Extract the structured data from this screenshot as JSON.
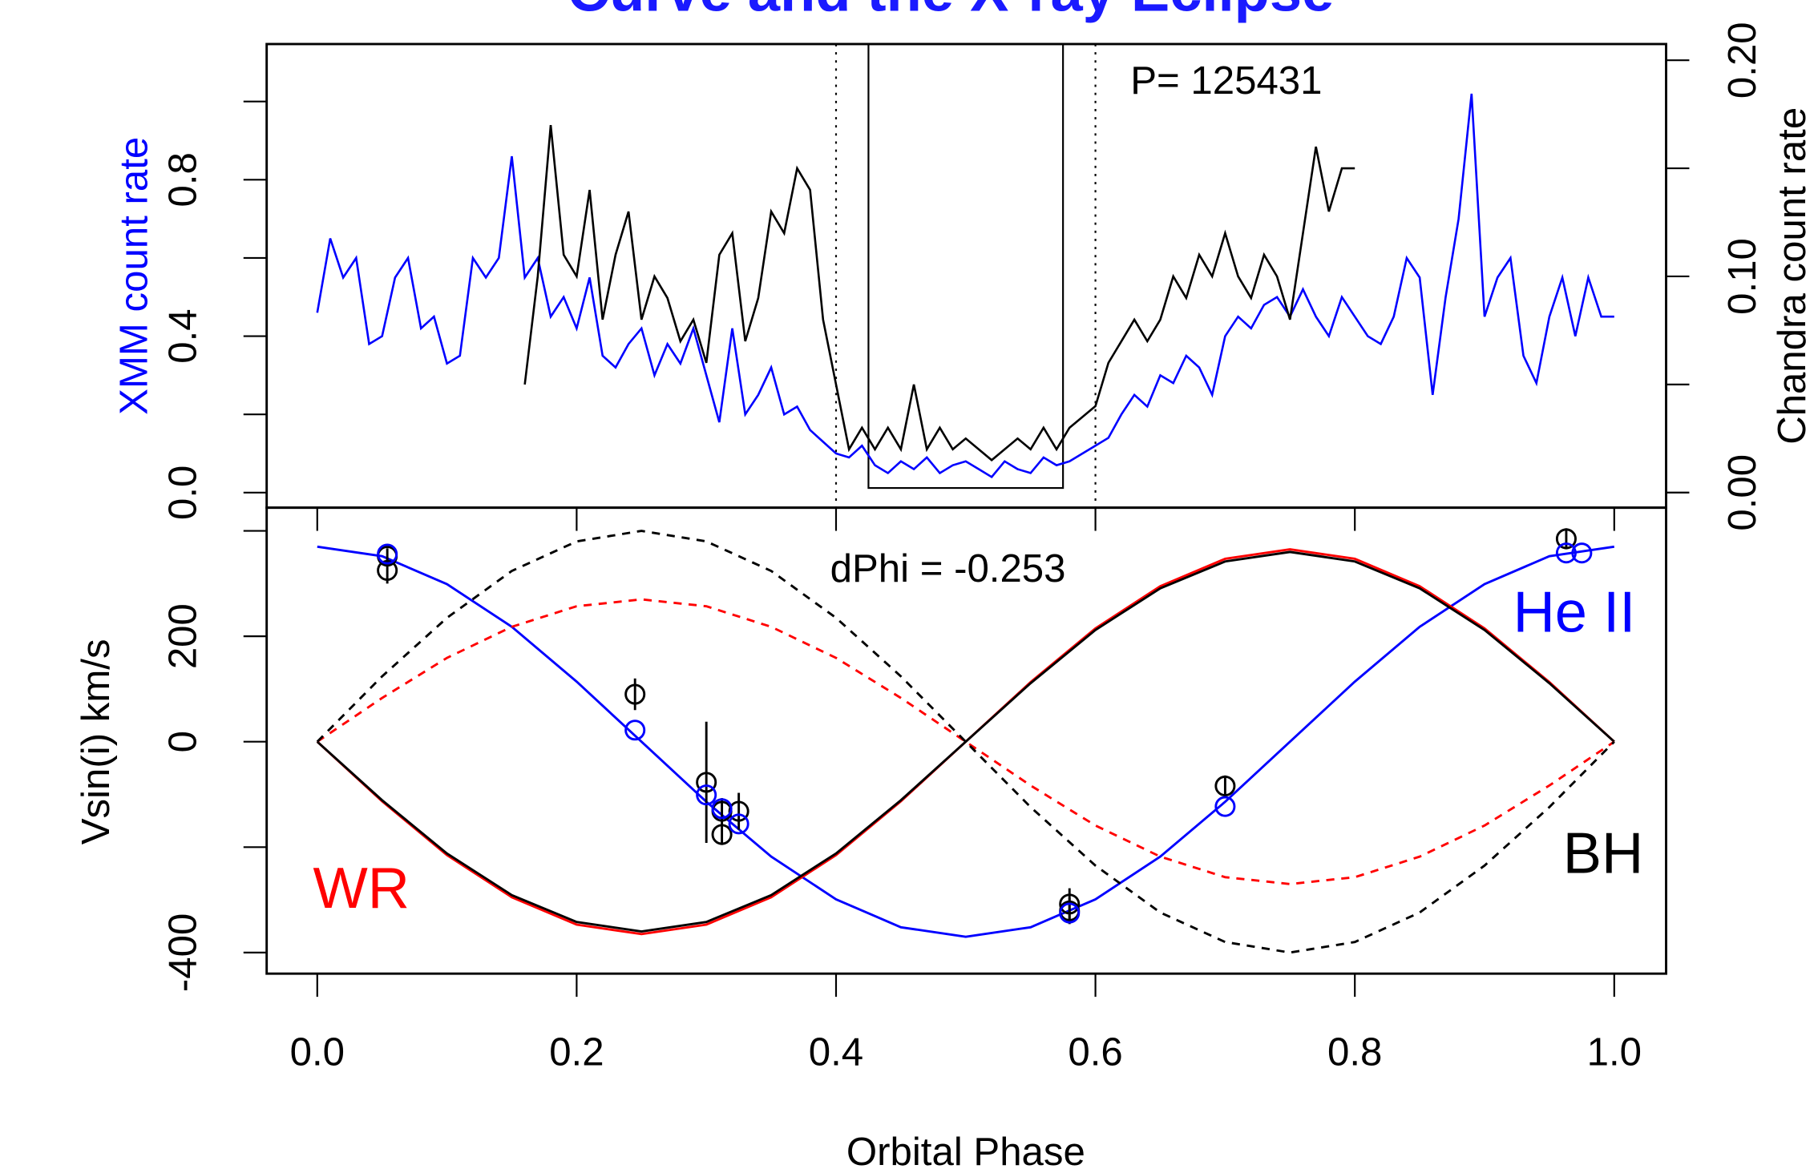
{
  "chart_data": [
    {
      "type": "line",
      "title": "Curve and the X-ray Eclipse",
      "xlim": [
        -0.039,
        1.04
      ],
      "ylim": [
        -0.0385,
        1.147
      ],
      "yticks": [
        {
          "value": 0,
          "label": "0.0"
        },
        {
          "value": 0.4,
          "label": "0.4"
        },
        {
          "value": 0.8,
          "label": "0.8"
        }
      ],
      "yminor_ticks": [
        0.2,
        0.6,
        1
      ],
      "y2lim": [
        -0.007,
        0.2075
      ],
      "y2ticks": [
        {
          "value": 0,
          "label": "0.00"
        },
        {
          "value": 0.1,
          "label": "0.10"
        },
        {
          "value": 0.2,
          "label": "0.20"
        }
      ],
      "y2minor_ticks": [
        0.05,
        0.15
      ],
      "ylabel": "XMM count rate",
      "ylabel_color": "#0000ff",
      "y2label": "Chandra count rate",
      "vlines": [
        0.4,
        0.6
      ],
      "box_x": [
        0.425,
        0.575
      ],
      "annotation": "P= 125431",
      "series": [
        {
          "color": "#0000ff",
          "x": [
            0,
            0.01,
            0.02,
            0.03,
            0.04,
            0.05,
            0.06,
            0.07,
            0.08,
            0.09,
            0.1,
            0.11,
            0.12,
            0.13,
            0.14,
            0.15,
            0.16,
            0.17,
            0.18,
            0.19,
            0.2,
            0.21,
            0.22,
            0.23,
            0.24,
            0.25,
            0.26,
            0.27,
            0.28,
            0.29,
            0.3,
            0.31,
            0.32,
            0.33,
            0.34,
            0.35,
            0.36,
            0.37,
            0.38,
            0.39,
            0.4,
            0.41,
            0.42,
            0.43,
            0.44,
            0.45,
            0.46,
            0.47,
            0.48,
            0.49,
            0.5,
            0.51,
            0.52,
            0.53,
            0.54,
            0.55,
            0.56,
            0.57,
            0.58,
            0.59,
            0.6,
            0.61,
            0.62,
            0.63,
            0.64,
            0.65,
            0.66,
            0.67,
            0.68,
            0.69,
            0.7,
            0.71,
            0.72,
            0.73,
            0.74,
            0.75,
            0.76,
            0.77,
            0.78,
            0.79,
            0.8,
            0.81,
            0.82,
            0.83,
            0.84,
            0.85,
            0.86,
            0.87,
            0.88,
            0.89,
            0.9,
            0.91,
            0.92,
            0.93,
            0.94,
            0.95,
            0.96,
            0.97,
            0.98,
            0.99,
            1
          ],
          "values": [
            0.46,
            0.65,
            0.55,
            0.6,
            0.38,
            0.4,
            0.55,
            0.6,
            0.42,
            0.45,
            0.33,
            0.35,
            0.6,
            0.55,
            0.6,
            0.86,
            0.55,
            0.6,
            0.45,
            0.5,
            0.42,
            0.55,
            0.35,
            0.32,
            0.38,
            0.42,
            0.3,
            0.38,
            0.33,
            0.42,
            0.3,
            0.18,
            0.42,
            0.2,
            0.25,
            0.32,
            0.2,
            0.22,
            0.16,
            0.13,
            0.1,
            0.09,
            0.12,
            0.07,
            0.05,
            0.08,
            0.06,
            0.09,
            0.05,
            0.07,
            0.08,
            0.06,
            0.04,
            0.08,
            0.06,
            0.05,
            0.09,
            0.07,
            0.08,
            0.1,
            0.12,
            0.14,
            0.2,
            0.25,
            0.22,
            0.3,
            0.28,
            0.35,
            0.32,
            0.25,
            0.4,
            0.45,
            0.42,
            0.48,
            0.5,
            0.45,
            0.52,
            0.45,
            0.4,
            0.5,
            0.45,
            0.4,
            0.38,
            0.45,
            0.6,
            0.55,
            0.25,
            0.5,
            0.7,
            1.02,
            0.45,
            0.55,
            0.6,
            0.35,
            0.28,
            0.45,
            0.55,
            0.4,
            0.55,
            0.45,
            0.45
          ]
        },
        {
          "color": "#000000",
          "axis": "y2",
          "x": [
            0.16,
            0.17,
            0.18,
            0.19,
            0.2,
            0.21,
            0.22,
            0.23,
            0.24,
            0.25,
            0.26,
            0.27,
            0.28,
            0.29,
            0.3,
            0.31,
            0.32,
            0.33,
            0.34,
            0.35,
            0.36,
            0.37,
            0.38,
            0.39,
            0.4,
            0.41,
            0.42,
            0.43,
            0.44,
            0.45,
            0.46,
            0.47,
            0.48,
            0.49,
            0.5,
            0.51,
            0.52,
            0.53,
            0.54,
            0.55,
            0.56,
            0.57,
            0.58,
            0.59,
            0.6,
            0.61,
            0.62,
            0.63,
            0.64,
            0.65,
            0.66,
            0.67,
            0.68,
            0.69,
            0.7,
            0.71,
            0.72,
            0.73,
            0.74,
            0.75,
            0.76,
            0.77,
            0.78,
            0.79,
            0.8
          ],
          "values": [
            0.05,
            0.1,
            0.17,
            0.11,
            0.1,
            0.14,
            0.08,
            0.11,
            0.13,
            0.08,
            0.1,
            0.09,
            0.07,
            0.08,
            0.06,
            0.11,
            0.12,
            0.07,
            0.09,
            0.13,
            0.12,
            0.15,
            0.14,
            0.08,
            0.05,
            0.02,
            0.03,
            0.02,
            0.03,
            0.02,
            0.05,
            0.02,
            0.03,
            0.02,
            0.025,
            0.02,
            0.015,
            0.02,
            0.025,
            0.02,
            0.03,
            0.02,
            0.03,
            0.035,
            0.04,
            0.06,
            0.07,
            0.08,
            0.07,
            0.08,
            0.1,
            0.09,
            0.11,
            0.1,
            0.12,
            0.1,
            0.09,
            0.11,
            0.1,
            0.08,
            0.12,
            0.16,
            0.13,
            0.15,
            0.15
          ]
        }
      ]
    },
    {
      "type": "line",
      "xlabel": "Orbital Phase",
      "ylabel": "Vsin(i) km/s",
      "xlim": [
        -0.039,
        1.04
      ],
      "ylim": [
        -440,
        444
      ],
      "xticks": [
        {
          "value": 0,
          "label": "0.0"
        },
        0.2,
        0.4,
        0.6,
        0.8,
        {
          "value": 1,
          "label": "1.0"
        }
      ],
      "yticks": [
        -400,
        0,
        200
      ],
      "yminor_ticks": [
        -200,
        400
      ],
      "annotation": "dPhi = -0.253",
      "x": [
        0,
        0.05,
        0.1,
        0.15,
        0.2,
        0.25,
        0.3,
        0.35,
        0.4,
        0.45,
        0.5,
        0.55,
        0.6,
        0.65,
        0.7,
        0.75,
        0.8,
        0.85,
        0.9,
        0.95,
        1
      ],
      "series": [
        {
          "name": "He II",
          "color": "#0000ff",
          "dashed": false,
          "values": [
            370,
            352,
            299,
            218,
            114,
            0,
            -114,
            -218,
            -299,
            -352,
            -370,
            -352,
            -299,
            -218,
            -114,
            0,
            114,
            218,
            299,
            352,
            370
          ]
        },
        {
          "name": "WR",
          "color": "#ff0000",
          "dashed": false,
          "values": [
            0,
            -113,
            -215,
            -295,
            -347,
            -365,
            -347,
            -295,
            -215,
            -113,
            0,
            113,
            215,
            295,
            347,
            365,
            347,
            295,
            215,
            113,
            0
          ]
        },
        {
          "name": "BH",
          "color": "#000000",
          "dashed": false,
          "values": [
            0,
            -111,
            -212,
            -291,
            -342,
            -360,
            -342,
            -291,
            -212,
            -111,
            0,
            111,
            212,
            291,
            342,
            360,
            342,
            291,
            212,
            111,
            0
          ]
        },
        {
          "color": "#ff0000",
          "dashed": true,
          "values": [
            0,
            83,
            159,
            218,
            257,
            270,
            257,
            218,
            159,
            83,
            0,
            -83,
            -159,
            -218,
            -257,
            -270,
            -257,
            -218,
            -159,
            -83,
            0
          ]
        },
        {
          "color": "#000000",
          "dashed": true,
          "values": [
            0,
            124,
            235,
            324,
            380,
            400,
            380,
            324,
            235,
            124,
            0,
            -124,
            -235,
            -324,
            -380,
            -400,
            -380,
            -324,
            -235,
            -124,
            0
          ]
        }
      ],
      "points": [
        {
          "color": "#000000",
          "x": [
            0.054,
            0.054,
            0.245,
            0.3,
            0.312,
            0.312,
            0.325,
            0.58,
            0.58,
            0.7,
            0.963
          ],
          "values": [
            352,
            325,
            90,
            -77,
            -132,
            -176,
            -132,
            -308,
            -321,
            -84,
            385
          ],
          "errors": [
            15,
            25,
            30,
            115,
            25,
            20,
            35,
            30,
            25,
            20,
            20
          ]
        },
        {
          "color": "#0000ff",
          "x": [
            0.054,
            0.245,
            0.3,
            0.312,
            0.325,
            0.58,
            0.7,
            0.963,
            0.975
          ],
          "values": [
            356,
            22,
            -101,
            -127,
            -156,
            -325,
            -123,
            358,
            358
          ]
        }
      ]
    }
  ]
}
